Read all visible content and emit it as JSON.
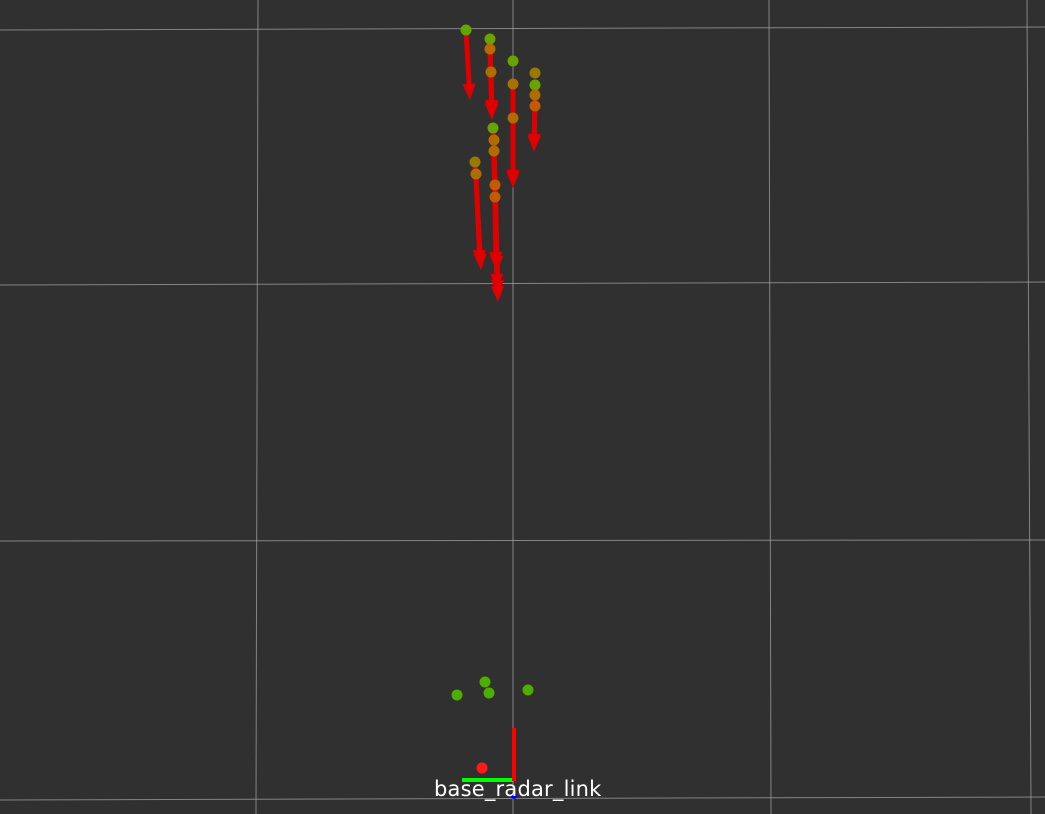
{
  "app": {
    "view": "3D viewport",
    "background_color": "#303030",
    "grid_color": "#a0a0a0"
  },
  "frame": {
    "label": "base_radar_link",
    "axes": {
      "x_axis_color": "#ff0000",
      "y_axis_color": "#00ff00",
      "z_axis_color": "#0000ff"
    }
  },
  "markers": {
    "detection_point_color": "#4caf00",
    "velocity_arrow_color": "#e00000",
    "ego_marker_color": "#ff1a1a"
  }
}
